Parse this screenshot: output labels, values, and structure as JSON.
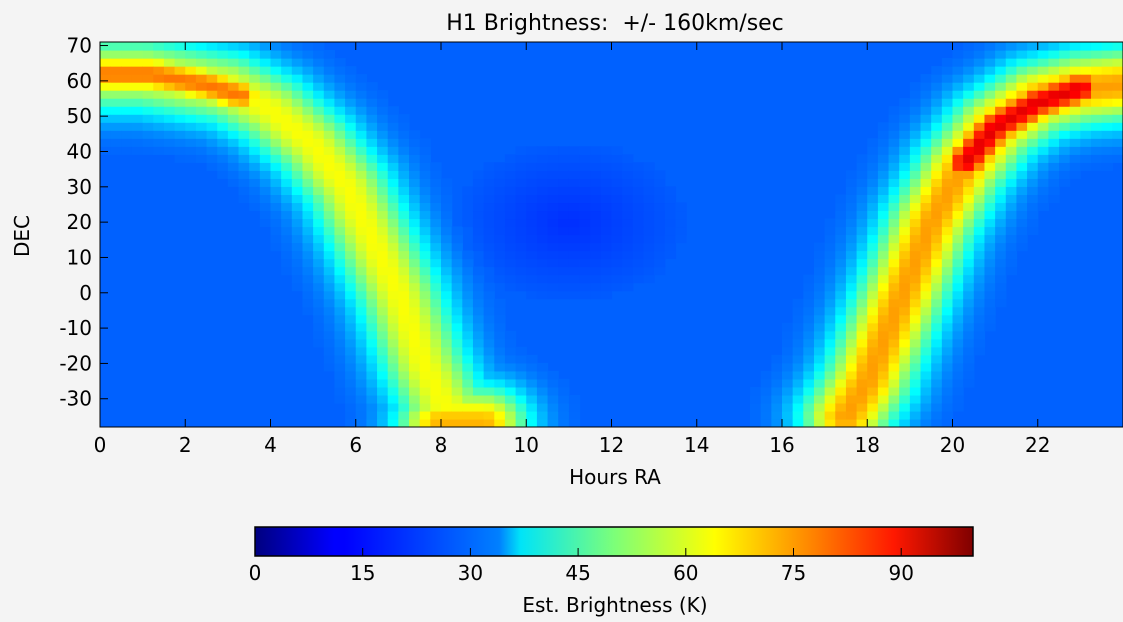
{
  "chart_data": {
    "type": "heatmap",
    "title": "H1 Brightness:  +/- 160km/sec",
    "xlabel": "Hours RA",
    "ylabel": "DEC",
    "xlim": [
      0,
      24
    ],
    "ylim": [
      -38,
      71
    ],
    "xticks": [
      0,
      2,
      4,
      6,
      8,
      10,
      12,
      14,
      16,
      18,
      20,
      22
    ],
    "yticks": [
      -30,
      -20,
      -10,
      0,
      10,
      20,
      30,
      40,
      50,
      60,
      70
    ],
    "grid": false,
    "colormap": "jet",
    "colorbar": {
      "label": "Est. Brightness (K)",
      "range": [
        0,
        100
      ],
      "ticks": [
        0,
        15,
        30,
        45,
        60,
        75,
        90
      ],
      "orientation": "horizontal",
      "placement": "bottom"
    },
    "background_level": 22,
    "features": [
      {
        "name": "left-arc",
        "path": [
          [
            0,
            62
          ],
          [
            1,
            62
          ],
          [
            2,
            60
          ],
          [
            3,
            58
          ],
          [
            4,
            52
          ],
          [
            5,
            42
          ],
          [
            5.8,
            30
          ],
          [
            6.2,
            20
          ],
          [
            6.6,
            10
          ],
          [
            7,
            0
          ],
          [
            7.3,
            -10
          ],
          [
            7.6,
            -20
          ],
          [
            8,
            -30
          ],
          [
            8.5,
            -37
          ]
        ],
        "peak": 62
      },
      {
        "name": "right-arc",
        "path": [
          [
            17.5,
            -35
          ],
          [
            18,
            -25
          ],
          [
            18.5,
            -10
          ],
          [
            19,
            5
          ],
          [
            19.5,
            20
          ],
          [
            20.2,
            35
          ],
          [
            21,
            47
          ],
          [
            22,
            55
          ],
          [
            23,
            58
          ],
          [
            24,
            59
          ]
        ],
        "peak": 72
      },
      {
        "name": "right-arc-core",
        "path": [
          [
            20.3,
            37
          ],
          [
            21,
            47
          ],
          [
            22,
            54
          ],
          [
            23,
            58
          ]
        ],
        "peak": 90
      },
      {
        "name": "upper-left-core",
        "path": [
          [
            0,
            62
          ],
          [
            1.2,
            62
          ],
          [
            2.5,
            59
          ],
          [
            3.3,
            56
          ]
        ],
        "peak": 76
      },
      {
        "name": "bottom-blob",
        "path": [
          [
            8,
            -37
          ],
          [
            9,
            -37
          ]
        ],
        "peak": 70
      }
    ]
  }
}
